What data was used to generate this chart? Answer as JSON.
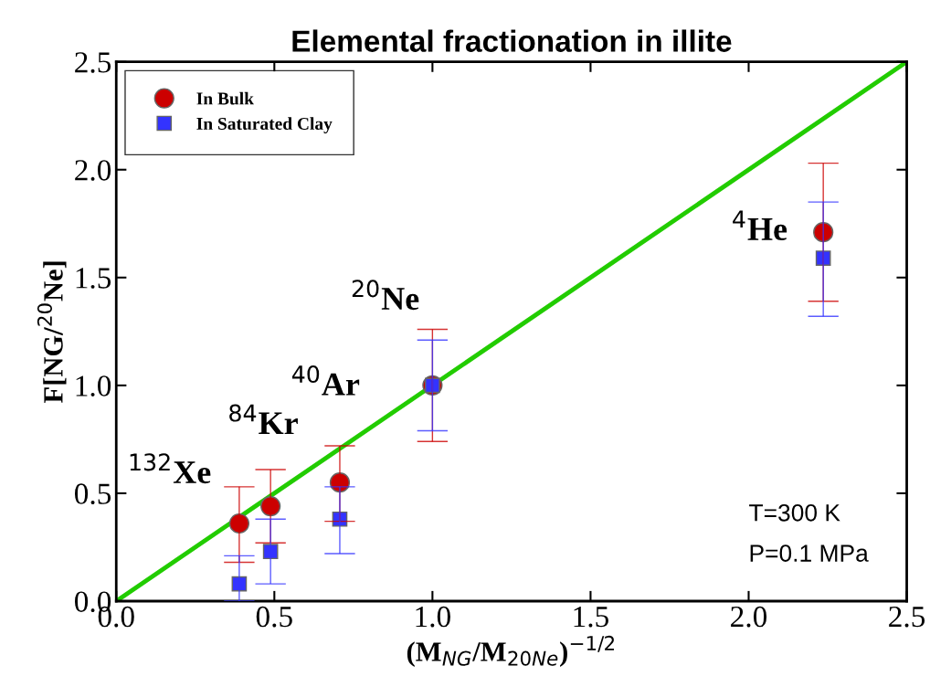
{
  "chart_data": {
    "type": "scatter",
    "title": "Elemental fractionation in illite",
    "xlabel": "(M$_{NG}$/M$_{20Ne}$)$^{−1/2}$",
    "ylabel": "F[NG/$^{20}$Ne]",
    "x": [
      0.389,
      0.488,
      0.707,
      1.0,
      2.236
    ],
    "series": [
      {
        "name": "In Bulk",
        "color": "#cc0000",
        "marker": "circle",
        "values": [
          0.36,
          0.44,
          0.55,
          1.0,
          1.71
        ],
        "errors": [
          [
            0.18,
            0.53
          ],
          [
            0.27,
            0.61
          ],
          [
            0.37,
            0.72
          ],
          [
            0.74,
            1.26
          ],
          [
            1.39,
            2.03
          ]
        ]
      },
      {
        "name": "In Saturated Clay",
        "color": "#3333ff",
        "marker": "square",
        "values": [
          0.08,
          0.23,
          0.38,
          1.0,
          1.59
        ],
        "errors": [
          [
            0.0,
            0.21
          ],
          [
            0.08,
            0.38
          ],
          [
            0.22,
            0.53
          ],
          [
            0.79,
            1.21
          ],
          [
            1.32,
            1.85
          ]
        ]
      },
      {
        "type": "line",
        "color": "#22cc00",
        "x": [
          0,
          2.5
        ],
        "values": [
          0,
          2.5
        ],
        "marker": "none"
      }
    ],
    "annotations": [
      {
        "text": "$^{132}$Xe",
        "x": 0.389,
        "y": 0.36
      },
      {
        "text": "$^{84}$Kr",
        "x": 0.488,
        "y": 0.44
      },
      {
        "text": "$^{40}$Ar",
        "x": 0.707,
        "y": 0.72
      },
      {
        "text": "$^{20}$Ne",
        "x": 1.0,
        "y": 1.0
      },
      {
        "text": "$^{4}$He",
        "x": 2.236,
        "y": 1.71
      },
      "T=300 K",
      "P=0.1 MPa"
    ],
    "xlim": [
      0,
      2.5
    ],
    "ylim": [
      0,
      2.5
    ],
    "xticks": [
      {
        "value": 0,
        "label": "0.0"
      },
      {
        "value": 0.5,
        "label": "0.5"
      },
      {
        "value": 1.0,
        "label": "1.0"
      },
      {
        "value": 1.5,
        "label": "1.5"
      },
      {
        "value": 2.0,
        "label": "2.0"
      },
      {
        "value": 2.5,
        "label": "2.5"
      }
    ],
    "yticks": [
      {
        "value": 0,
        "label": "0.0"
      },
      {
        "value": 0.5,
        "label": "0.5"
      },
      {
        "value": 1.0,
        "label": "1.0"
      },
      {
        "value": 1.5,
        "label": "1.5"
      },
      {
        "value": 2.0,
        "label": "2.0"
      },
      {
        "value": 2.5,
        "label": "2.5"
      }
    ],
    "grid": false,
    "legend": "top left"
  }
}
